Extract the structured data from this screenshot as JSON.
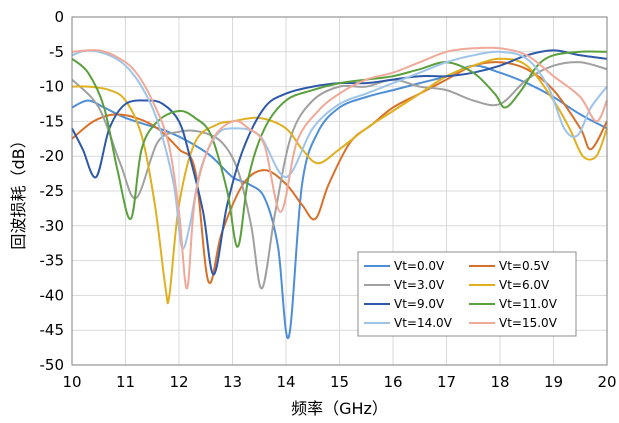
{
  "chart_data": {
    "type": "line",
    "xlabel": "频率（GHz）",
    "ylabel": "回波损耗（dB）",
    "xlim": [
      10,
      20
    ],
    "ylim": [
      -50,
      0
    ],
    "xticks": [
      10,
      11,
      12,
      13,
      14,
      15,
      16,
      17,
      18,
      19,
      20
    ],
    "yticks": [
      0,
      -5,
      -10,
      -15,
      -20,
      -25,
      -30,
      -35,
      -40,
      -45,
      -50
    ],
    "grid": true,
    "legend_position": "bottom-right",
    "series": [
      {
        "name": "Vt=0.0V",
        "color": "#4e8ed6",
        "x": [
          10,
          10.3,
          10.6,
          11,
          11.4,
          11.8,
          12.2,
          12.6,
          13,
          13.3,
          13.6,
          13.85,
          14.05,
          14.3,
          14.6,
          15,
          15.5,
          16,
          16.5,
          17,
          17.5,
          18,
          18.5,
          19,
          19.5,
          20
        ],
        "y": [
          -13,
          -12,
          -13,
          -14.5,
          -15.5,
          -16.5,
          -18,
          -20,
          -23,
          -24,
          -26,
          -33,
          -46,
          -24,
          -16.5,
          -13,
          -11.5,
          -10.5,
          -9.5,
          -8.5,
          -7,
          -8,
          -9.5,
          -11.5,
          -14,
          -16
        ]
      },
      {
        "name": "Vt=0.5V",
        "color": "#d8702a",
        "x": [
          10,
          10.4,
          10.8,
          11.2,
          11.6,
          12,
          12.3,
          12.55,
          12.8,
          13.2,
          13.6,
          14,
          14.3,
          14.55,
          14.8,
          15.2,
          15.6,
          16,
          16.5,
          17,
          17.5,
          18,
          18.5,
          19,
          19.5,
          19.7,
          20
        ],
        "y": [
          -17.5,
          -15,
          -14,
          -14.5,
          -16,
          -19,
          -22,
          -38,
          -31,
          -24,
          -22,
          -24,
          -27,
          -29,
          -24,
          -18,
          -15.5,
          -13,
          -11,
          -9,
          -7,
          -6.5,
          -7.5,
          -10.5,
          -16,
          -19,
          -15
        ]
      },
      {
        "name": "Vt=3.0V",
        "color": "#a0a0a0",
        "x": [
          10,
          10.5,
          10.9,
          11.2,
          11.6,
          12,
          12.4,
          12.8,
          13.1,
          13.35,
          13.55,
          13.8,
          14.1,
          14.5,
          15,
          15.5,
          16,
          16.5,
          17,
          17.5,
          18,
          18.5,
          19,
          19.5,
          20
        ],
        "y": [
          -9,
          -13,
          -21,
          -26,
          -18,
          -16.5,
          -16.5,
          -18,
          -22,
          -30,
          -39,
          -28,
          -17,
          -12,
          -10,
          -10,
          -9,
          -10,
          -10.5,
          -12,
          -12.5,
          -9,
          -7,
          -6.5,
          -7.5
        ]
      },
      {
        "name": "Vt=6.0V",
        "color": "#e0b020",
        "x": [
          10,
          10.3,
          10.7,
          11,
          11.3,
          11.55,
          11.75,
          11.82,
          12,
          12.3,
          12.7,
          13,
          13.5,
          14,
          14.3,
          14.6,
          15,
          15.5,
          16,
          16.5,
          17,
          17.5,
          18,
          18.5,
          19,
          19.3,
          19.55,
          19.8,
          20
        ],
        "y": [
          -10,
          -10,
          -10.5,
          -12,
          -17,
          -27,
          -39,
          -40,
          -27,
          -18,
          -15.5,
          -15,
          -14.5,
          -16,
          -19,
          -21,
          -19,
          -16,
          -13.5,
          -11,
          -8.5,
          -7,
          -6,
          -7,
          -12,
          -16,
          -20,
          -20,
          -16
        ]
      },
      {
        "name": "Vt=9.0V",
        "color": "#2e58a8",
        "x": [
          10,
          10.2,
          10.45,
          10.7,
          11,
          11.4,
          11.7,
          12,
          12.2,
          12.45,
          12.65,
          12.9,
          13.2,
          13.6,
          14,
          14.5,
          15,
          15.5,
          16,
          16.5,
          17,
          17.5,
          18,
          18.5,
          19,
          19.5,
          20
        ],
        "y": [
          -16,
          -19,
          -23,
          -16,
          -12.5,
          -12,
          -12.5,
          -15,
          -20,
          -28,
          -37,
          -27,
          -19,
          -13,
          -11,
          -10,
          -9.5,
          -9.5,
          -9,
          -8.5,
          -8.5,
          -8,
          -7,
          -5.5,
          -4.8,
          -5.5,
          -6
        ]
      },
      {
        "name": "Vt=11.0V",
        "color": "#5aa03c",
        "x": [
          10,
          10.3,
          10.6,
          10.85,
          11.1,
          11.3,
          11.6,
          12,
          12.3,
          12.6,
          12.9,
          13.1,
          13.3,
          13.6,
          14,
          14.5,
          15,
          15.5,
          16,
          16.5,
          17,
          17.5,
          17.9,
          18.1,
          18.4,
          18.7,
          19,
          19.5,
          20
        ],
        "y": [
          -6,
          -8,
          -13,
          -22,
          -29,
          -19,
          -15,
          -13.5,
          -14.5,
          -17,
          -25,
          -33,
          -23,
          -16,
          -12,
          -10.5,
          -9.5,
          -9,
          -8.5,
          -7.5,
          -6.5,
          -8,
          -11,
          -13,
          -10.5,
          -7,
          -5.5,
          -5,
          -5
        ]
      },
      {
        "name": "Vt=14.0V",
        "color": "#9ec4ea",
        "x": [
          10,
          10.3,
          10.7,
          11,
          11.3,
          11.6,
          11.9,
          12.05,
          12.2,
          12.4,
          12.7,
          13,
          13.5,
          14,
          14.5,
          15,
          15.5,
          16,
          16.5,
          17,
          17.5,
          18,
          18.5,
          18.9,
          19.2,
          19.45,
          19.7,
          20
        ],
        "y": [
          -5.5,
          -4.8,
          -5.5,
          -7,
          -10,
          -15,
          -24,
          -33,
          -30,
          -22,
          -17,
          -16,
          -17,
          -23,
          -16,
          -12.5,
          -11,
          -9.5,
          -8,
          -6.5,
          -5.5,
          -5,
          -6,
          -10,
          -16,
          -17,
          -13,
          -10
        ]
      },
      {
        "name": "Vt=15.0V",
        "color": "#f0a898",
        "x": [
          10,
          10.5,
          10.9,
          11.2,
          11.5,
          11.8,
          12,
          12.15,
          12.3,
          12.6,
          13,
          13.3,
          13.6,
          13.9,
          14.2,
          14.6,
          15,
          15.5,
          16,
          16.5,
          17,
          17.5,
          18,
          18.5,
          19,
          19.5,
          19.8,
          20
        ],
        "y": [
          -5,
          -4.8,
          -6,
          -8,
          -12,
          -18,
          -28,
          -39,
          -26,
          -18,
          -15,
          -16,
          -18.5,
          -28,
          -18,
          -13.5,
          -11,
          -9,
          -8,
          -6.5,
          -5,
          -4.5,
          -4.5,
          -5.5,
          -8.5,
          -11.5,
          -15,
          -12
        ]
      }
    ]
  }
}
